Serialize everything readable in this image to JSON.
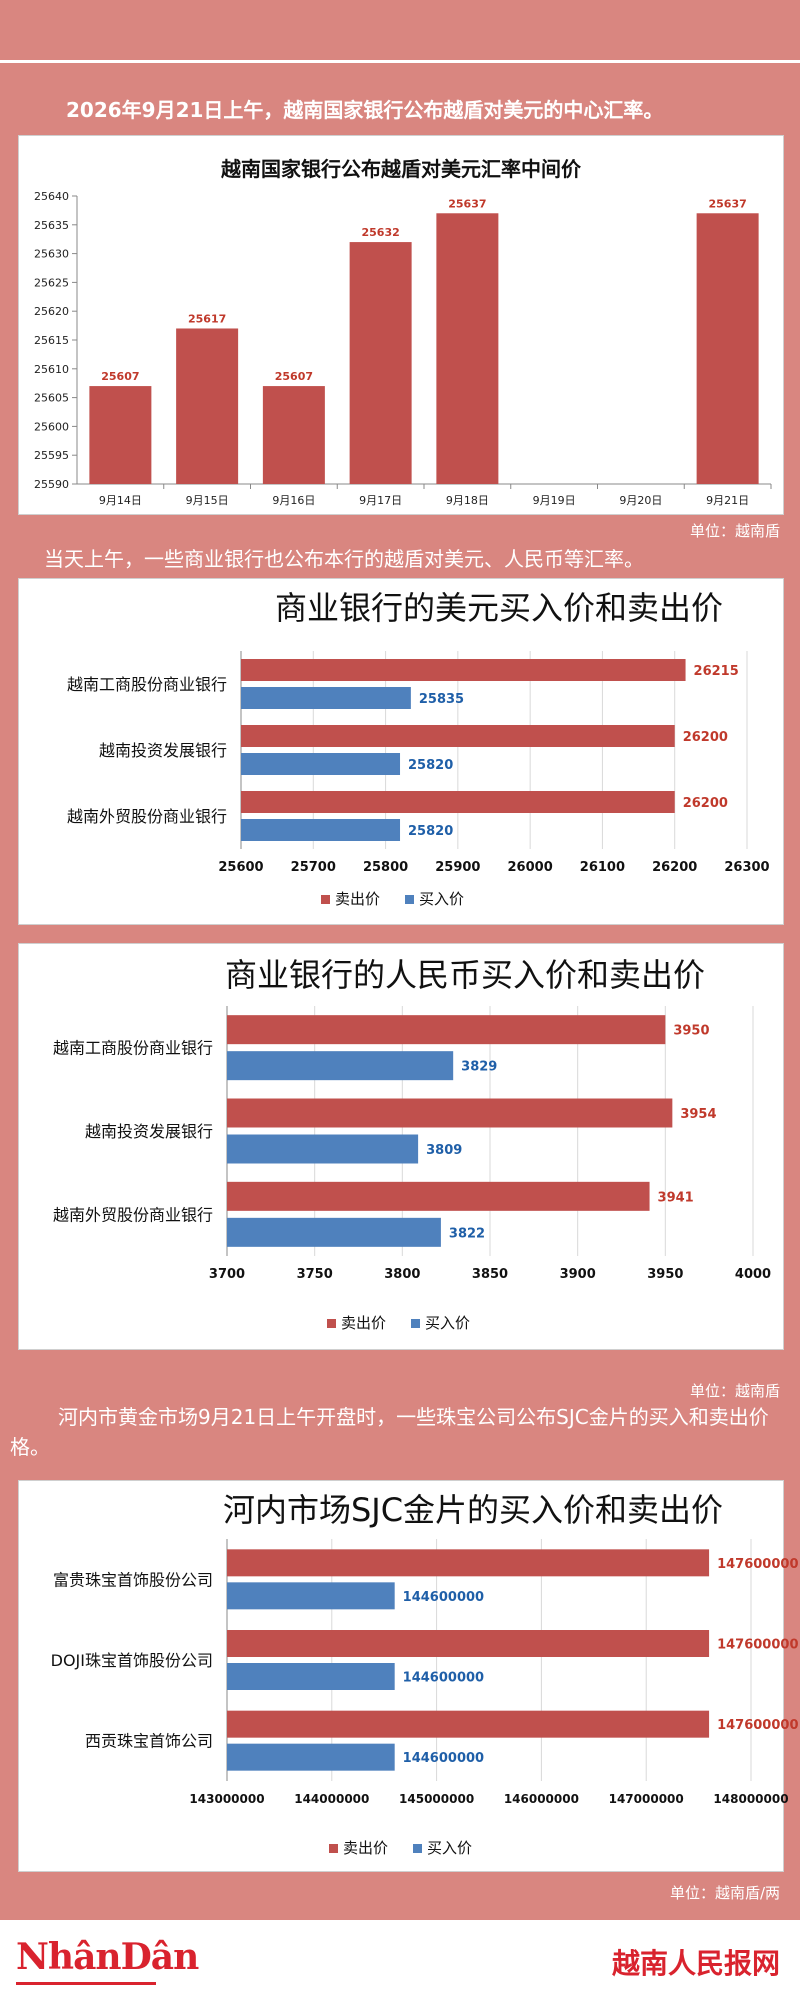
{
  "intro1": "2026年9月21日上午，越南国家银行公布越盾对美元的中心汇率。",
  "intro2": "当天上午，一些商业银行也公布本行的越盾对美元、人民币等汇率。",
  "intro3": "河内市黄金市场9月21日上午开盘时，一些珠宝公司公布SJC金片的买入和卖出价格。",
  "unit1": "单位：越南盾",
  "unit2": "单位：越南盾",
  "unit3": "单位：越南盾/两",
  "footer": {
    "logo_left": "NhânDân",
    "logo_right": "越南人民报网"
  },
  "colors": {
    "sell": "#c0504d",
    "buy": "#4f81bd",
    "background": "#d98680"
  },
  "chart_data": [
    {
      "type": "bar",
      "title": "越南国家银行公布越盾对美元汇率中间价",
      "categories": [
        "9月14日",
        "9月15日",
        "9月16日",
        "9月17日",
        "9月18日",
        "9月19日",
        "9月20日",
        "9月21日"
      ],
      "values": [
        25607,
        25617,
        25607,
        25632,
        25637,
        null,
        null,
        25637
      ],
      "labels": [
        "25607",
        "25617",
        "25607",
        "25632",
        "25637",
        "",
        "",
        "25637"
      ],
      "yticks": [
        "25590",
        "25595",
        "25600",
        "25605",
        "25610",
        "25615",
        "25620",
        "25625",
        "25630",
        "25635",
        "25640"
      ],
      "ylim": [
        25590,
        25640
      ],
      "grid": false,
      "legend": "none"
    },
    {
      "type": "bar",
      "orientation": "horizontal",
      "title": "商业银行的美元买入价和卖出价",
      "categories": [
        "越南工商股份商业银行",
        "越南投资发展银行",
        "越南外贸股份商业银行"
      ],
      "series": [
        {
          "name": "卖出价",
          "values": [
            26215,
            26200,
            26200
          ],
          "labels": [
            "26215",
            "26200",
            "26200"
          ]
        },
        {
          "name": "买入价",
          "values": [
            25835,
            25820,
            25820
          ],
          "labels": [
            "25835",
            "25820",
            "25820"
          ]
        }
      ],
      "xticks": [
        "25600",
        "25700",
        "25800",
        "25900",
        "26000",
        "26100",
        "26200",
        "26300"
      ],
      "xlim": [
        25600,
        26300
      ],
      "legend": "bottom"
    },
    {
      "type": "bar",
      "orientation": "horizontal",
      "title": "商业银行的人民币买入价和卖出价",
      "categories": [
        "越南工商股份商业银行",
        "越南投资发展银行",
        "越南外贸股份商业银行"
      ],
      "series": [
        {
          "name": "卖出价",
          "values": [
            3950,
            3954,
            3941
          ],
          "labels": [
            "3950",
            "3954",
            "3941"
          ]
        },
        {
          "name": "买入价",
          "values": [
            3829,
            3809,
            3822
          ],
          "labels": [
            "3829",
            "3809",
            "3822"
          ]
        }
      ],
      "xticks": [
        "3700",
        "3750",
        "3800",
        "3850",
        "3900",
        "3950",
        "4000"
      ],
      "xlim": [
        3700,
        4000
      ],
      "legend": "bottom"
    },
    {
      "type": "bar",
      "orientation": "horizontal",
      "title": "河内市场SJC金片的买入价和卖出价",
      "categories": [
        "富贵珠宝首饰股份公司",
        "DOJI珠宝首饰股份公司",
        "西贡珠宝首饰公司"
      ],
      "series": [
        {
          "name": "卖出价",
          "values": [
            147600000,
            147600000,
            147600000
          ],
          "labels": [
            "147600000",
            "147600000",
            "147600000"
          ]
        },
        {
          "name": "买入价",
          "values": [
            144600000,
            144600000,
            144600000
          ],
          "labels": [
            "144600000",
            "144600000",
            "144600000"
          ]
        }
      ],
      "xticks": [
        "143000000",
        "144000000",
        "145000000",
        "146000000",
        "147000000",
        "148000000"
      ],
      "xlim": [
        143000000,
        148000000
      ],
      "legend": "bottom"
    }
  ]
}
